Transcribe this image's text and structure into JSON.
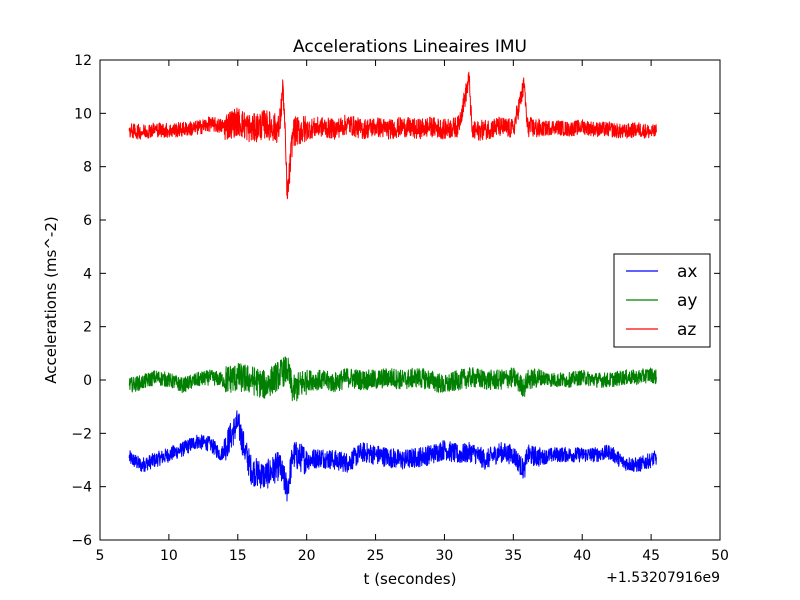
{
  "chart_data": {
    "type": "line",
    "title": "Accelerations Lineaires IMU",
    "xlabel": "t (secondes)",
    "ylabel": "Accelerations (ms^-2)",
    "x_offset_label": "+1.53207916e9",
    "xlim": [
      5,
      50
    ],
    "ylim": [
      -6,
      12
    ],
    "xticks": [
      5,
      10,
      15,
      20,
      25,
      30,
      35,
      40,
      45,
      50
    ],
    "yticks": [
      -6,
      -4,
      -2,
      0,
      2,
      4,
      6,
      8,
      10,
      12
    ],
    "legend_position": "center-right",
    "grid": false,
    "x_range": [
      7.1,
      45.4
    ],
    "series": [
      {
        "name": "ax",
        "color": "#0000ff",
        "points": [
          [
            7.1,
            -2.9
          ],
          [
            8,
            -3.2
          ],
          [
            9,
            -3.0
          ],
          [
            10,
            -2.8
          ],
          [
            11,
            -2.6
          ],
          [
            12,
            -2.3
          ],
          [
            13,
            -2.4
          ],
          [
            13.8,
            -2.8
          ],
          [
            14.5,
            -2.1
          ],
          [
            15,
            -1.6
          ],
          [
            15.5,
            -2.6
          ],
          [
            16,
            -3.4
          ],
          [
            17,
            -3.6
          ],
          [
            18,
            -3.2
          ],
          [
            18.6,
            -4.1
          ],
          [
            19,
            -2.8
          ],
          [
            20,
            -3.0
          ],
          [
            21,
            -2.9
          ],
          [
            22,
            -3.0
          ],
          [
            23,
            -3.1
          ],
          [
            24,
            -2.7
          ],
          [
            25,
            -2.8
          ],
          [
            26,
            -2.9
          ],
          [
            27,
            -3.0
          ],
          [
            28,
            -2.9
          ],
          [
            29,
            -2.8
          ],
          [
            30,
            -2.6
          ],
          [
            31,
            -2.8
          ],
          [
            32,
            -2.7
          ],
          [
            33,
            -3.0
          ],
          [
            34,
            -2.7
          ],
          [
            35,
            -2.8
          ],
          [
            35.8,
            -3.4
          ],
          [
            36,
            -2.8
          ],
          [
            37,
            -2.9
          ],
          [
            38,
            -2.8
          ],
          [
            39,
            -2.8
          ],
          [
            40,
            -2.8
          ],
          [
            41,
            -2.8
          ],
          [
            42,
            -2.7
          ],
          [
            43,
            -3.1
          ],
          [
            44,
            -3.2
          ],
          [
            45,
            -3.0
          ],
          [
            45.4,
            -2.9
          ]
        ]
      },
      {
        "name": "ay",
        "color": "#008000",
        "points": [
          [
            7.1,
            -0.2
          ],
          [
            8,
            -0.1
          ],
          [
            9,
            0.1
          ],
          [
            10,
            0.0
          ],
          [
            11,
            -0.2
          ],
          [
            12,
            0.0
          ],
          [
            13,
            0.1
          ],
          [
            14,
            0.0
          ],
          [
            15,
            0.1
          ],
          [
            16,
            0.0
          ],
          [
            17,
            -0.2
          ],
          [
            18,
            0.2
          ],
          [
            18.6,
            0.4
          ],
          [
            19,
            -0.4
          ],
          [
            20,
            0.0
          ],
          [
            21,
            0.0
          ],
          [
            22,
            -0.1
          ],
          [
            23,
            0.1
          ],
          [
            24,
            0.0
          ],
          [
            25,
            0.0
          ],
          [
            26,
            0.1
          ],
          [
            27,
            0.0
          ],
          [
            28,
            0.1
          ],
          [
            29,
            0.0
          ],
          [
            30,
            -0.2
          ],
          [
            31,
            0.0
          ],
          [
            32,
            0.1
          ],
          [
            33,
            0.0
          ],
          [
            34,
            0.0
          ],
          [
            35,
            0.1
          ],
          [
            35.8,
            -0.3
          ],
          [
            36,
            0.0
          ],
          [
            37,
            0.1
          ],
          [
            38,
            0.0
          ],
          [
            39,
            0.0
          ],
          [
            40,
            0.1
          ],
          [
            41,
            0.0
          ],
          [
            42,
            0.0
          ],
          [
            43,
            0.1
          ],
          [
            44,
            0.1
          ],
          [
            45,
            0.2
          ],
          [
            45.4,
            0.1
          ]
        ]
      },
      {
        "name": "az",
        "color": "#ff0000",
        "points": [
          [
            7.1,
            9.35
          ],
          [
            8,
            9.3
          ],
          [
            9,
            9.4
          ],
          [
            10,
            9.35
          ],
          [
            11,
            9.4
          ],
          [
            12,
            9.45
          ],
          [
            13,
            9.6
          ],
          [
            14,
            9.5
          ],
          [
            15,
            9.7
          ],
          [
            16,
            9.4
          ],
          [
            17,
            9.6
          ],
          [
            18,
            9.4
          ],
          [
            18.3,
            11.0
          ],
          [
            18.6,
            6.8
          ],
          [
            19,
            9.3
          ],
          [
            20,
            9.4
          ],
          [
            21,
            9.5
          ],
          [
            22,
            9.4
          ],
          [
            23,
            9.6
          ],
          [
            24,
            9.4
          ],
          [
            25,
            9.5
          ],
          [
            26,
            9.4
          ],
          [
            27,
            9.5
          ],
          [
            28,
            9.4
          ],
          [
            29,
            9.5
          ],
          [
            30,
            9.4
          ],
          [
            31,
            9.5
          ],
          [
            31.8,
            11.3
          ],
          [
            32,
            9.3
          ],
          [
            33,
            9.4
          ],
          [
            34,
            9.5
          ],
          [
            35,
            9.4
          ],
          [
            35.8,
            11.1
          ],
          [
            36,
            9.5
          ],
          [
            37,
            9.4
          ],
          [
            38,
            9.5
          ],
          [
            39,
            9.4
          ],
          [
            40,
            9.5
          ],
          [
            41,
            9.4
          ],
          [
            42,
            9.4
          ],
          [
            43,
            9.3
          ],
          [
            44,
            9.4
          ],
          [
            45,
            9.3
          ],
          [
            45.4,
            9.3
          ]
        ]
      }
    ]
  }
}
